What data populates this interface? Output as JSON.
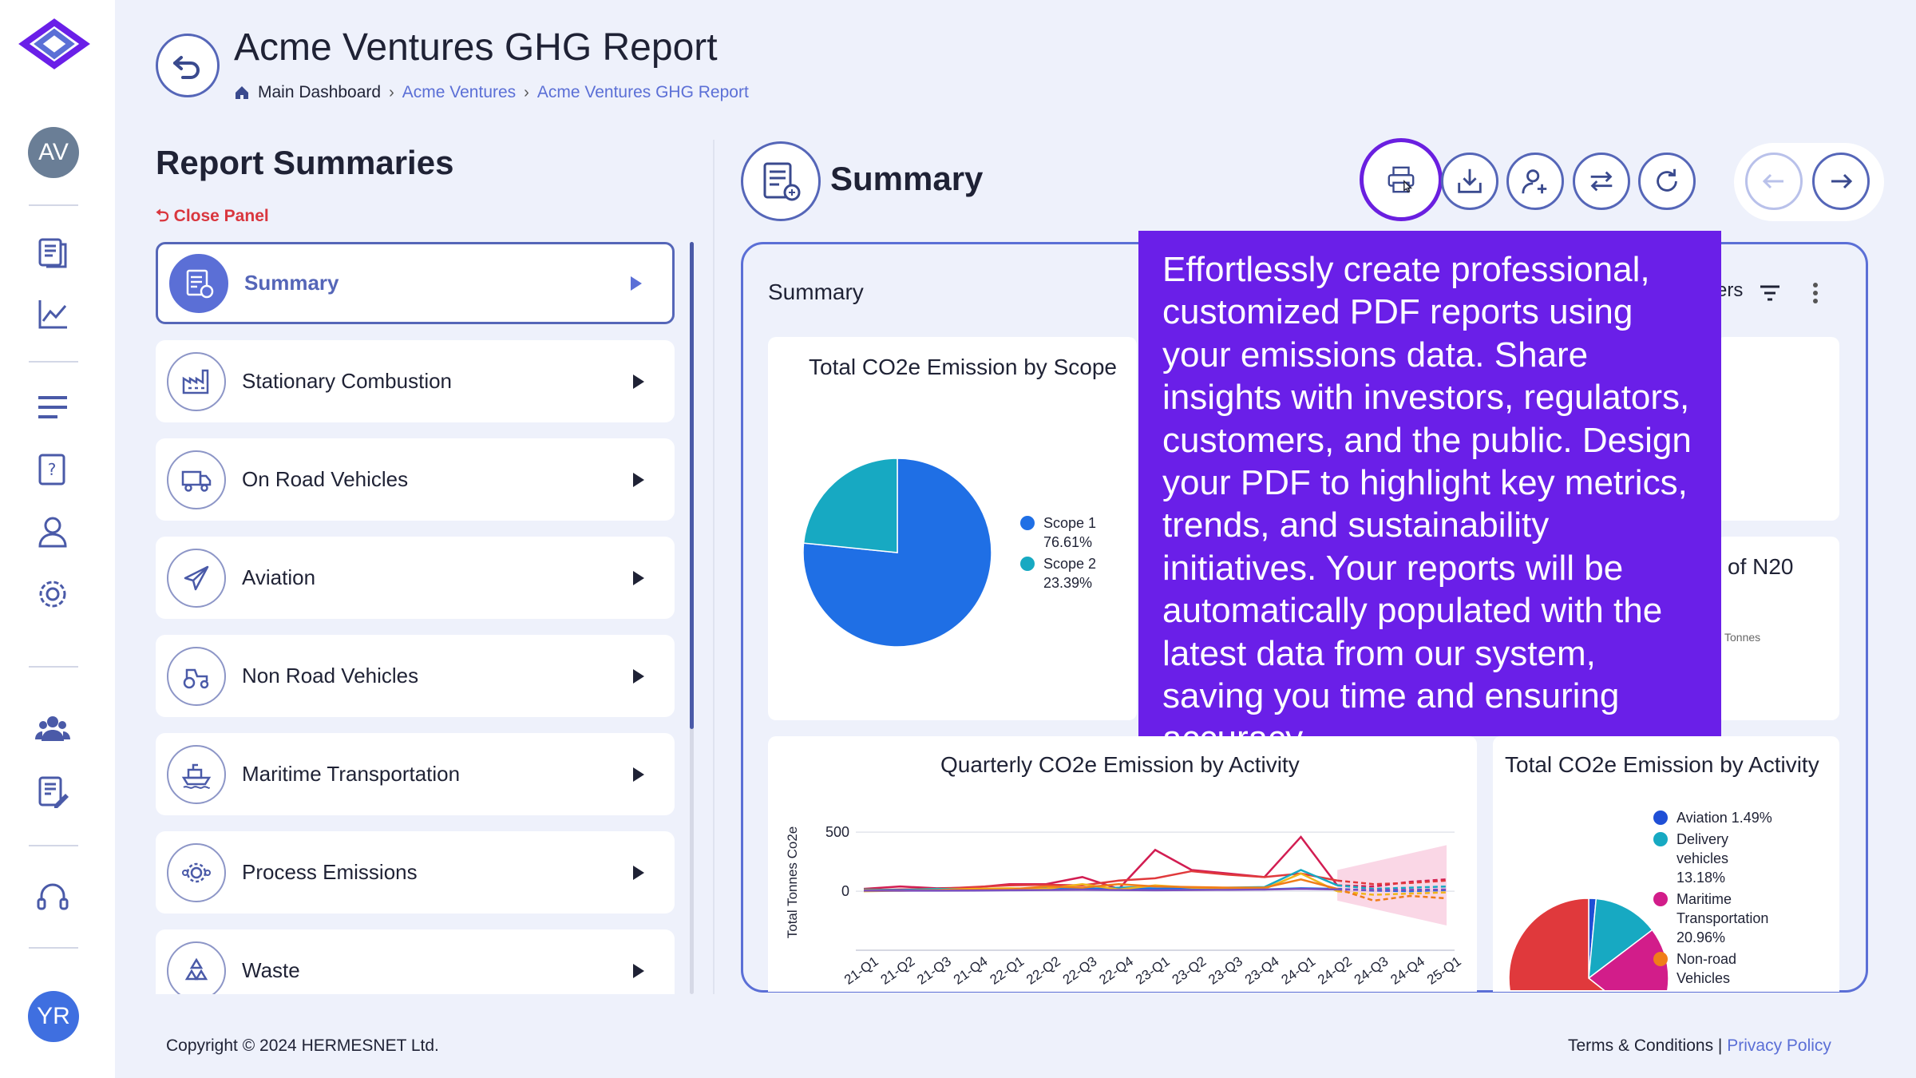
{
  "app": {
    "rail_avatar_top": "AV",
    "rail_avatar_bottom": "YR"
  },
  "header": {
    "title": "Acme Ventures GHG Report",
    "breadcrumb": [
      "Main Dashboard",
      "Acme Ventures",
      "Acme Ventures GHG Report"
    ]
  },
  "left_panel": {
    "title": "Report Summaries",
    "close_label": "Close Panel",
    "items": [
      {
        "label": "Summary",
        "icon": "report-icon",
        "active": true
      },
      {
        "label": "Stationary Combustion",
        "icon": "factory-icon"
      },
      {
        "label": "On Road Vehicles",
        "icon": "truck-icon"
      },
      {
        "label": "Aviation",
        "icon": "airplane-icon"
      },
      {
        "label": "Non Road Vehicles",
        "icon": "tractor-icon"
      },
      {
        "label": "Maritime Transportation",
        "icon": "ship-icon"
      },
      {
        "label": "Process Emissions",
        "icon": "gears-icon"
      },
      {
        "label": "Waste",
        "icon": "recycle-icon"
      }
    ]
  },
  "summary": {
    "title": "Summary",
    "card_title": "Summary",
    "filters_partial": "ers",
    "toolbar": [
      "print-icon",
      "download-icon",
      "add-user-icon",
      "swap-icon",
      "refresh-icon"
    ]
  },
  "tooltip": {
    "text": "Effortlessly create professional, customized PDF reports using your emissions data. Share insights with investors, regulators, customers, and the public. Design your PDF to highlight key metrics, trends, and sustainability initiatives. Your reports will be automatically populated with the latest data from our system, saving you time and ensuring accuracy."
  },
  "side_panel": {
    "partial_title": "of N20",
    "partial_unit": "Tonnes"
  },
  "colors": {
    "accent": "#5b6fd6",
    "tooltip": "#6a1fe8",
    "scope1": "#1f6fe5",
    "scope2": "#17a9c2"
  },
  "chart_data": [
    {
      "type": "pie",
      "title": "Total CO2e Emission by Scope",
      "legend_position": "right",
      "series": [
        {
          "name": "Scope 1",
          "value": 76.61,
          "label": "76.61%",
          "color": "#1f6fe5"
        },
        {
          "name": "Scope 2",
          "value": 23.39,
          "label": "23.39%",
          "color": "#17a9c2"
        }
      ]
    },
    {
      "type": "line",
      "title": "Quarterly CO2e Emission by Activity",
      "ylabel": "Total Tonnes Co2e",
      "y_ticks": [
        "500",
        "0"
      ],
      "ylim": [
        -500,
        650
      ],
      "categories": [
        "21-Q1",
        "21-Q2",
        "21-Q3",
        "21-Q4",
        "22-Q1",
        "22-Q2",
        "22-Q3",
        "22-Q4",
        "23-Q1",
        "23-Q2",
        "23-Q3",
        "23-Q4",
        "24-Q1",
        "24-Q2",
        "24-Q3",
        "24-Q4",
        "25-Q1"
      ],
      "tick_labels": [
        "21-Q1",
        "21-Q2",
        "21-Q3",
        "21-Q4",
        "22-Q1",
        "22-Q2",
        "22-Q3",
        "22-Q4",
        "23-Q1",
        "23-Q2",
        "23-Q3",
        "23-Q4",
        "24-Q1",
        "24-Q2",
        "24-Q3",
        "24-Q4",
        "25-Q1"
      ],
      "forecast_from_index": 13,
      "series": [
        {
          "color": "#d21d52",
          "values": [
            20,
            40,
            25,
            30,
            60,
            60,
            120,
            20,
            350,
            180,
            150,
            120,
            460,
            50,
            40,
            80,
            100
          ]
        },
        {
          "color": "#e0393c",
          "values": [
            10,
            15,
            20,
            35,
            50,
            55,
            50,
            90,
            110,
            170,
            140,
            120,
            150,
            90,
            60,
            70,
            90
          ]
        },
        {
          "color": "#17a9c2",
          "values": [
            15,
            10,
            20,
            15,
            20,
            25,
            20,
            30,
            40,
            25,
            30,
            35,
            180,
            50,
            20,
            30,
            40
          ]
        },
        {
          "color": "#1f6fe5",
          "values": [
            5,
            8,
            6,
            10,
            12,
            15,
            18,
            20,
            22,
            20,
            18,
            15,
            25,
            20,
            5,
            0,
            10
          ]
        },
        {
          "color": "#f0b51b",
          "values": [
            0,
            5,
            10,
            20,
            25,
            20,
            60,
            15,
            50,
            30,
            25,
            20,
            150,
            0,
            -30,
            -20,
            -10
          ]
        },
        {
          "color": "#f07d19",
          "values": [
            10,
            5,
            8,
            12,
            15,
            40,
            30,
            60,
            40,
            35,
            30,
            30,
            100,
            20,
            -80,
            -40,
            -60
          ]
        },
        {
          "color": "#7a4fbf",
          "values": [
            5,
            5,
            5,
            6,
            8,
            10,
            12,
            10,
            8,
            10,
            12,
            14,
            20,
            15,
            10,
            12,
            14
          ]
        }
      ]
    },
    {
      "type": "pie",
      "title": "Total CO2e Emission by Activity",
      "legend_position": "right",
      "series": [
        {
          "name": "Aviation",
          "label": "1.49%",
          "value": 1.49,
          "color": "#1f4fd6"
        },
        {
          "name": "Delivery vehicles",
          "label": "13.18%",
          "value": 13.18,
          "color": "#17a9c2"
        },
        {
          "name": "Maritime Transportation",
          "label": "20.96%",
          "value": 20.96,
          "color": "#d21d8a"
        },
        {
          "name": "Non-road Vehicles",
          "value": 0,
          "color": "#f07d19"
        }
      ]
    }
  ],
  "footer": {
    "copyright": "Copyright © 2024 HERMESNET Ltd.",
    "terms": "Terms & Conditions",
    "separator": "|",
    "privacy": "Privacy Policy"
  }
}
